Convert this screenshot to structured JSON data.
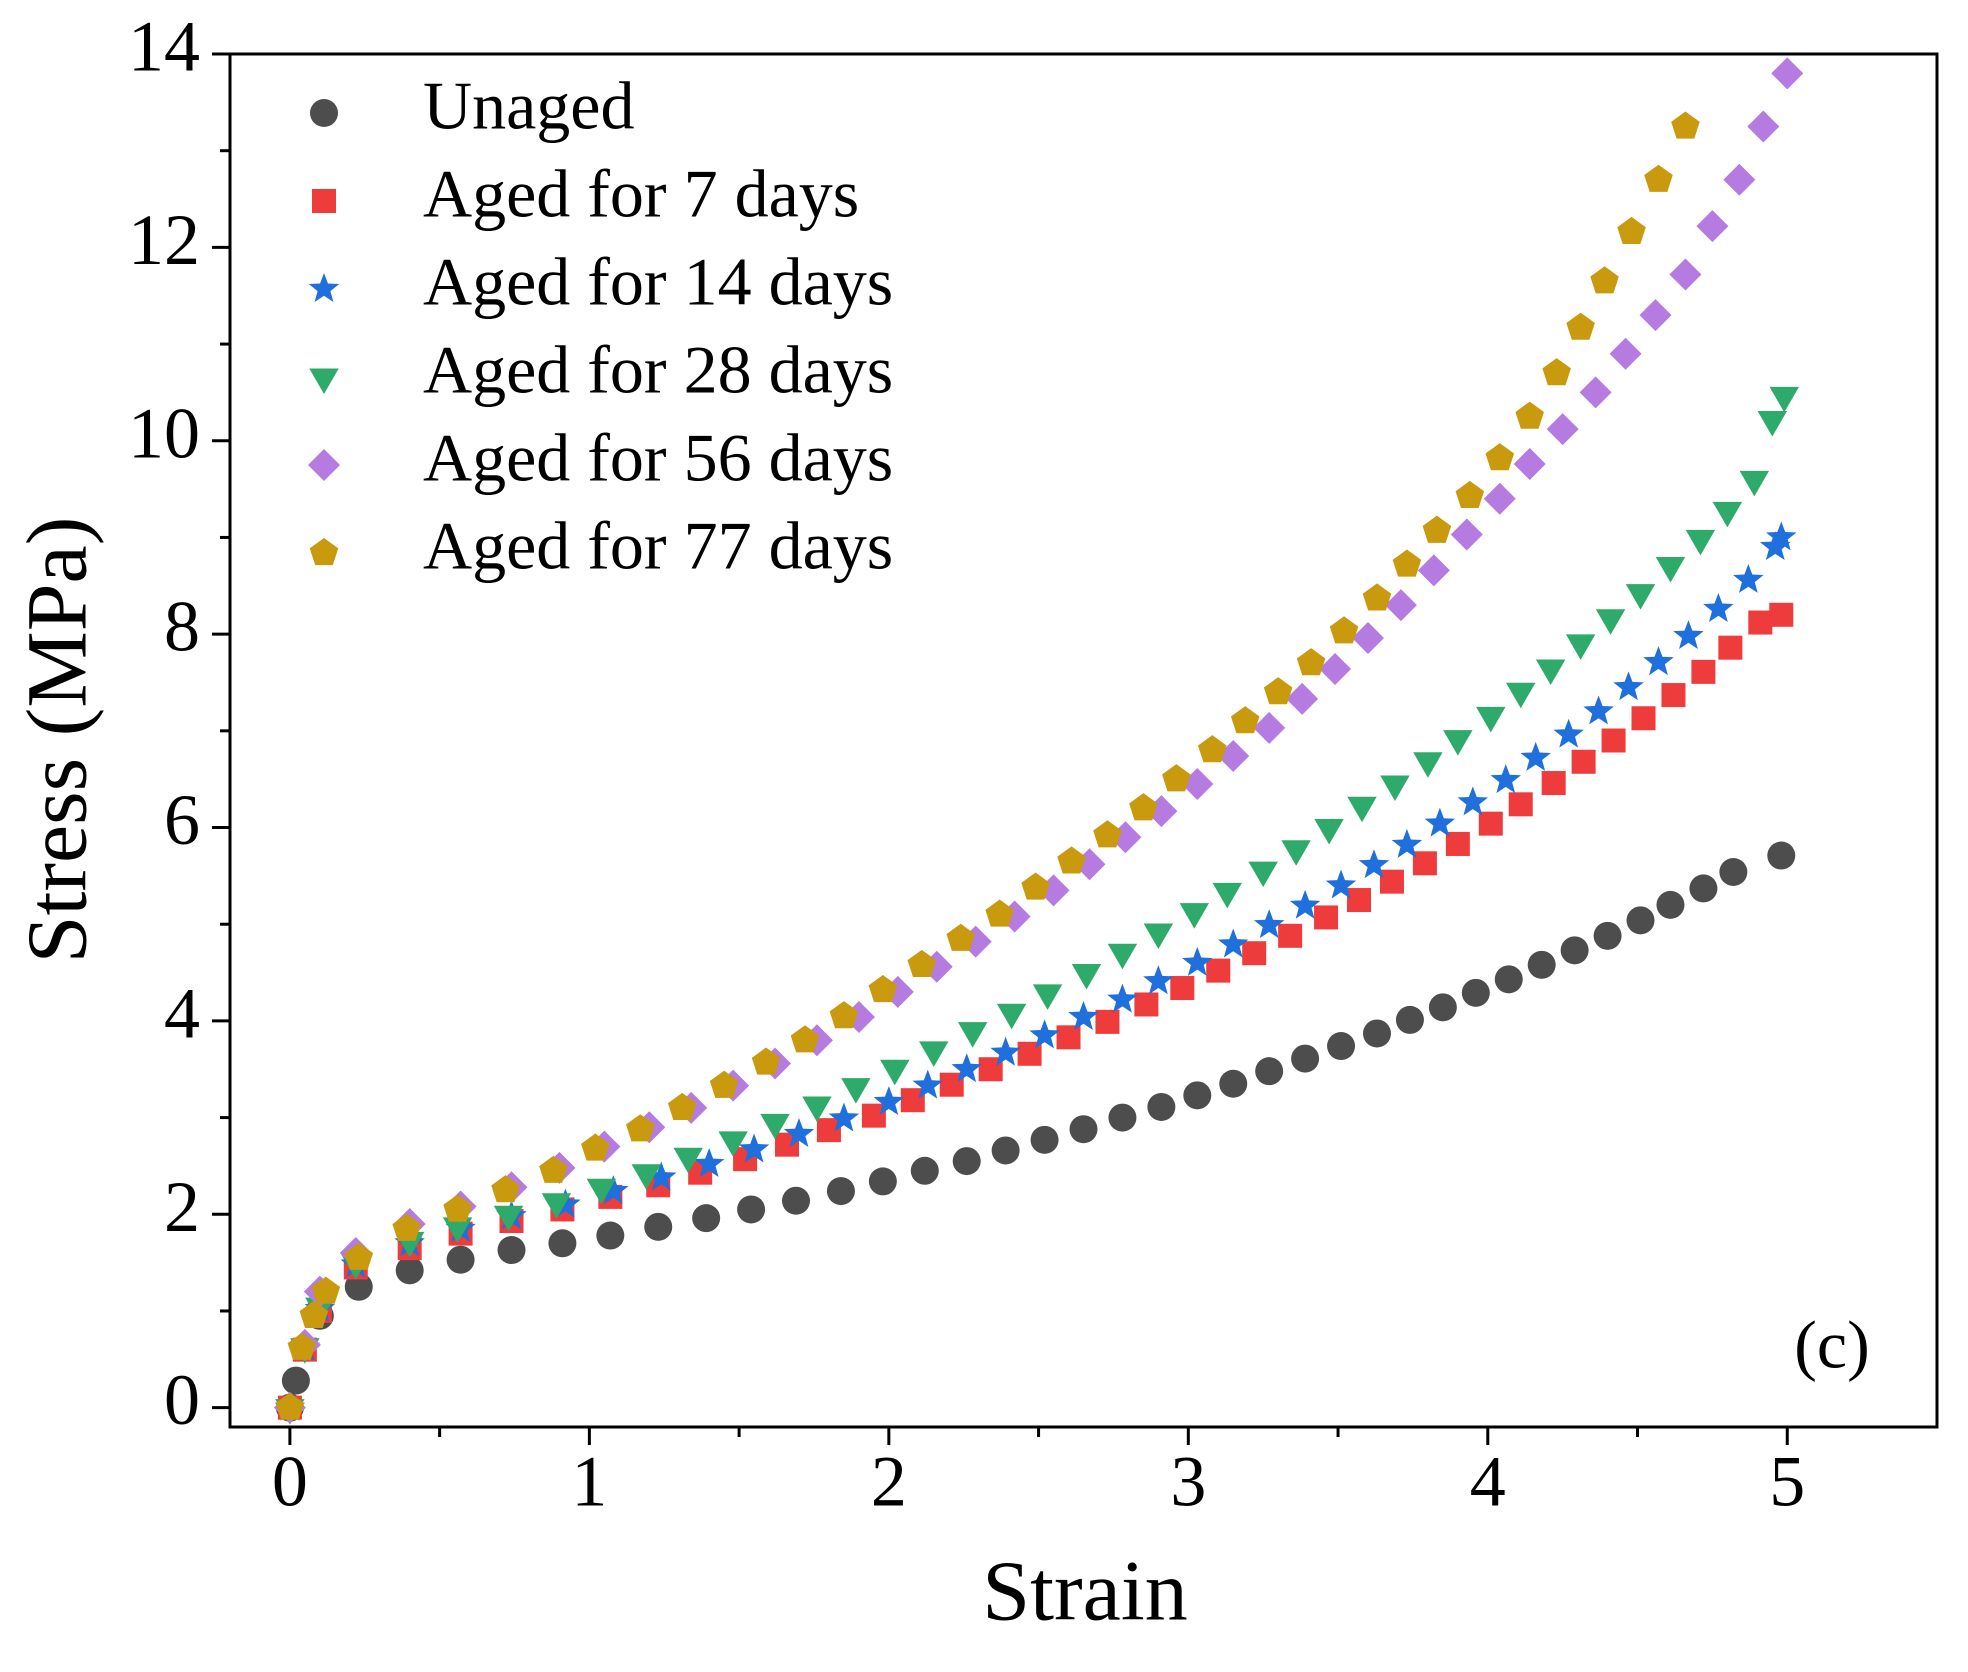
{
  "chart_data": {
    "type": "scatter",
    "xlabel": "Strain",
    "ylabel": "Stress (MPa)",
    "annotation": "(c)",
    "xlim": [
      -0.2,
      5.5
    ],
    "ylim": [
      -0.2,
      14
    ],
    "xticks": [
      0,
      1,
      2,
      3,
      4,
      5
    ],
    "yticks": [
      0,
      2,
      4,
      6,
      8,
      10,
      12,
      14
    ],
    "xminorticks": [
      0.5,
      1.5,
      2.5,
      3.5,
      4.5
    ],
    "yminorticks": [
      1,
      3,
      5,
      7,
      9,
      11,
      13
    ],
    "legend": "upper left",
    "series": [
      {
        "name": "Unaged",
        "color": "#4d4d4d",
        "marker": "circle",
        "x": [
          0,
          0.02,
          0.1,
          0.23,
          0.4,
          0.57,
          0.74,
          0.91,
          1.07,
          1.23,
          1.39,
          1.54,
          1.69,
          1.84,
          1.98,
          2.12,
          2.26,
          2.39,
          2.52,
          2.65,
          2.78,
          2.91,
          3.03,
          3.15,
          3.27,
          3.39,
          3.51,
          3.63,
          3.74,
          3.85,
          3.96,
          4.07,
          4.18,
          4.29,
          4.4,
          4.51,
          4.61,
          4.72,
          4.82,
          4.98
        ],
        "values": [
          0,
          0.28,
          0.95,
          1.25,
          1.42,
          1.53,
          1.63,
          1.7,
          1.78,
          1.87,
          1.96,
          2.05,
          2.14,
          2.24,
          2.34,
          2.45,
          2.55,
          2.66,
          2.77,
          2.88,
          3.0,
          3.11,
          3.23,
          3.35,
          3.48,
          3.61,
          3.74,
          3.87,
          4.01,
          4.14,
          4.29,
          4.43,
          4.58,
          4.73,
          4.88,
          5.04,
          5.2,
          5.37,
          5.54,
          5.71
        ]
      },
      {
        "name": "Aged for 7 days",
        "color": "#ee3b3b",
        "marker": "square",
        "x": [
          0,
          0.05,
          0.1,
          0.22,
          0.4,
          0.57,
          0.74,
          0.91,
          1.07,
          1.23,
          1.37,
          1.52,
          1.66,
          1.8,
          1.95,
          2.08,
          2.21,
          2.34,
          2.47,
          2.6,
          2.73,
          2.86,
          2.98,
          3.1,
          3.22,
          3.34,
          3.46,
          3.57,
          3.68,
          3.79,
          3.9,
          4.01,
          4.11,
          4.22,
          4.32,
          4.42,
          4.52,
          4.62,
          4.72,
          4.81,
          4.91,
          4.98
        ],
        "values": [
          0,
          0.6,
          1.0,
          1.45,
          1.65,
          1.8,
          1.93,
          2.05,
          2.18,
          2.3,
          2.43,
          2.57,
          2.72,
          2.87,
          3.02,
          3.18,
          3.34,
          3.5,
          3.66,
          3.83,
          3.99,
          4.17,
          4.34,
          4.52,
          4.7,
          4.88,
          5.07,
          5.25,
          5.44,
          5.63,
          5.83,
          6.04,
          6.24,
          6.46,
          6.68,
          6.9,
          7.13,
          7.37,
          7.61,
          7.86,
          8.12,
          8.2
        ]
      },
      {
        "name": "Aged for 14 days",
        "color": "#1f6fdc",
        "marker": "star",
        "x": [
          0,
          0.05,
          0.1,
          0.22,
          0.4,
          0.57,
          0.74,
          0.92,
          1.08,
          1.24,
          1.4,
          1.55,
          1.7,
          1.85,
          2.0,
          2.13,
          2.26,
          2.39,
          2.52,
          2.65,
          2.78,
          2.9,
          3.03,
          3.15,
          3.27,
          3.39,
          3.51,
          3.62,
          3.73,
          3.84,
          3.95,
          4.06,
          4.16,
          4.27,
          4.37,
          4.47,
          4.57,
          4.67,
          4.77,
          4.87,
          4.96,
          4.98
        ],
        "values": [
          0,
          0.62,
          1.02,
          1.48,
          1.7,
          1.85,
          1.98,
          2.1,
          2.24,
          2.38,
          2.52,
          2.67,
          2.83,
          2.99,
          3.16,
          3.33,
          3.5,
          3.67,
          3.85,
          4.04,
          4.22,
          4.41,
          4.6,
          4.79,
          4.99,
          5.19,
          5.4,
          5.61,
          5.82,
          6.04,
          6.26,
          6.49,
          6.72,
          6.96,
          7.2,
          7.45,
          7.71,
          7.98,
          8.26,
          8.56,
          8.9,
          9.0
        ]
      },
      {
        "name": "Aged for 28 days",
        "color": "#2eaa6a",
        "marker": "triangle-down",
        "x": [
          0,
          0.05,
          0.1,
          0.22,
          0.4,
          0.56,
          0.73,
          0.89,
          1.04,
          1.19,
          1.33,
          1.48,
          1.62,
          1.76,
          1.89,
          2.02,
          2.15,
          2.28,
          2.41,
          2.53,
          2.66,
          2.78,
          2.9,
          3.02,
          3.13,
          3.25,
          3.36,
          3.47,
          3.58,
          3.69,
          3.8,
          3.9,
          4.01,
          4.11,
          4.21,
          4.31,
          4.41,
          4.51,
          4.61,
          4.71,
          4.8,
          4.89,
          4.95,
          4.99
        ],
        "values": [
          0,
          0.63,
          1.05,
          1.5,
          1.73,
          1.88,
          2.0,
          2.13,
          2.28,
          2.43,
          2.6,
          2.77,
          2.95,
          3.13,
          3.32,
          3.51,
          3.7,
          3.9,
          4.09,
          4.29,
          4.5,
          4.71,
          4.92,
          5.13,
          5.34,
          5.56,
          5.78,
          6.0,
          6.23,
          6.45,
          6.69,
          6.92,
          7.16,
          7.41,
          7.65,
          7.91,
          8.17,
          8.43,
          8.71,
          8.99,
          9.28,
          9.6,
          10.22,
          10.47
        ]
      },
      {
        "name": "Aged for 56 days",
        "color": "#b57be0",
        "marker": "diamond",
        "x": [
          0,
          0.05,
          0.1,
          0.22,
          0.4,
          0.57,
          0.74,
          0.9,
          1.05,
          1.2,
          1.34,
          1.48,
          1.62,
          1.76,
          1.9,
          2.03,
          2.16,
          2.29,
          2.42,
          2.55,
          2.67,
          2.79,
          2.91,
          3.03,
          3.15,
          3.27,
          3.38,
          3.49,
          3.6,
          3.71,
          3.82,
          3.93,
          4.04,
          4.14,
          4.25,
          4.36,
          4.46,
          4.56,
          4.66,
          4.75,
          4.84,
          4.92,
          5.0
        ],
        "values": [
          0,
          0.65,
          1.2,
          1.6,
          1.9,
          2.08,
          2.28,
          2.48,
          2.7,
          2.9,
          3.1,
          3.33,
          3.56,
          3.8,
          4.04,
          4.3,
          4.56,
          4.82,
          5.08,
          5.35,
          5.62,
          5.9,
          6.17,
          6.45,
          6.74,
          7.03,
          7.33,
          7.64,
          7.96,
          8.3,
          8.66,
          9.03,
          9.4,
          9.76,
          10.12,
          10.5,
          10.9,
          11.3,
          11.72,
          12.22,
          12.7,
          13.25,
          13.8
        ]
      },
      {
        "name": "Aged for 77 days",
        "color": "#c9990e",
        "marker": "pentagon",
        "x": [
          0,
          0.04,
          0.08,
          0.12,
          0.23,
          0.39,
          0.56,
          0.72,
          0.88,
          1.02,
          1.17,
          1.31,
          1.45,
          1.59,
          1.72,
          1.85,
          1.98,
          2.11,
          2.24,
          2.37,
          2.49,
          2.61,
          2.73,
          2.85,
          2.96,
          3.08,
          3.19,
          3.3,
          3.41,
          3.52,
          3.63,
          3.73,
          3.83,
          3.94,
          4.04,
          4.14,
          4.23,
          4.31,
          4.39,
          4.48,
          4.57,
          4.66
        ],
        "values": [
          0,
          0.62,
          0.95,
          1.2,
          1.55,
          1.85,
          2.05,
          2.25,
          2.45,
          2.68,
          2.88,
          3.1,
          3.33,
          3.57,
          3.8,
          4.05,
          4.32,
          4.58,
          4.85,
          5.1,
          5.38,
          5.65,
          5.92,
          6.2,
          6.5,
          6.8,
          7.1,
          7.4,
          7.7,
          8.03,
          8.37,
          8.72,
          9.07,
          9.43,
          9.82,
          10.25,
          10.7,
          11.17,
          11.65,
          12.16,
          12.7,
          13.25
        ]
      }
    ]
  }
}
